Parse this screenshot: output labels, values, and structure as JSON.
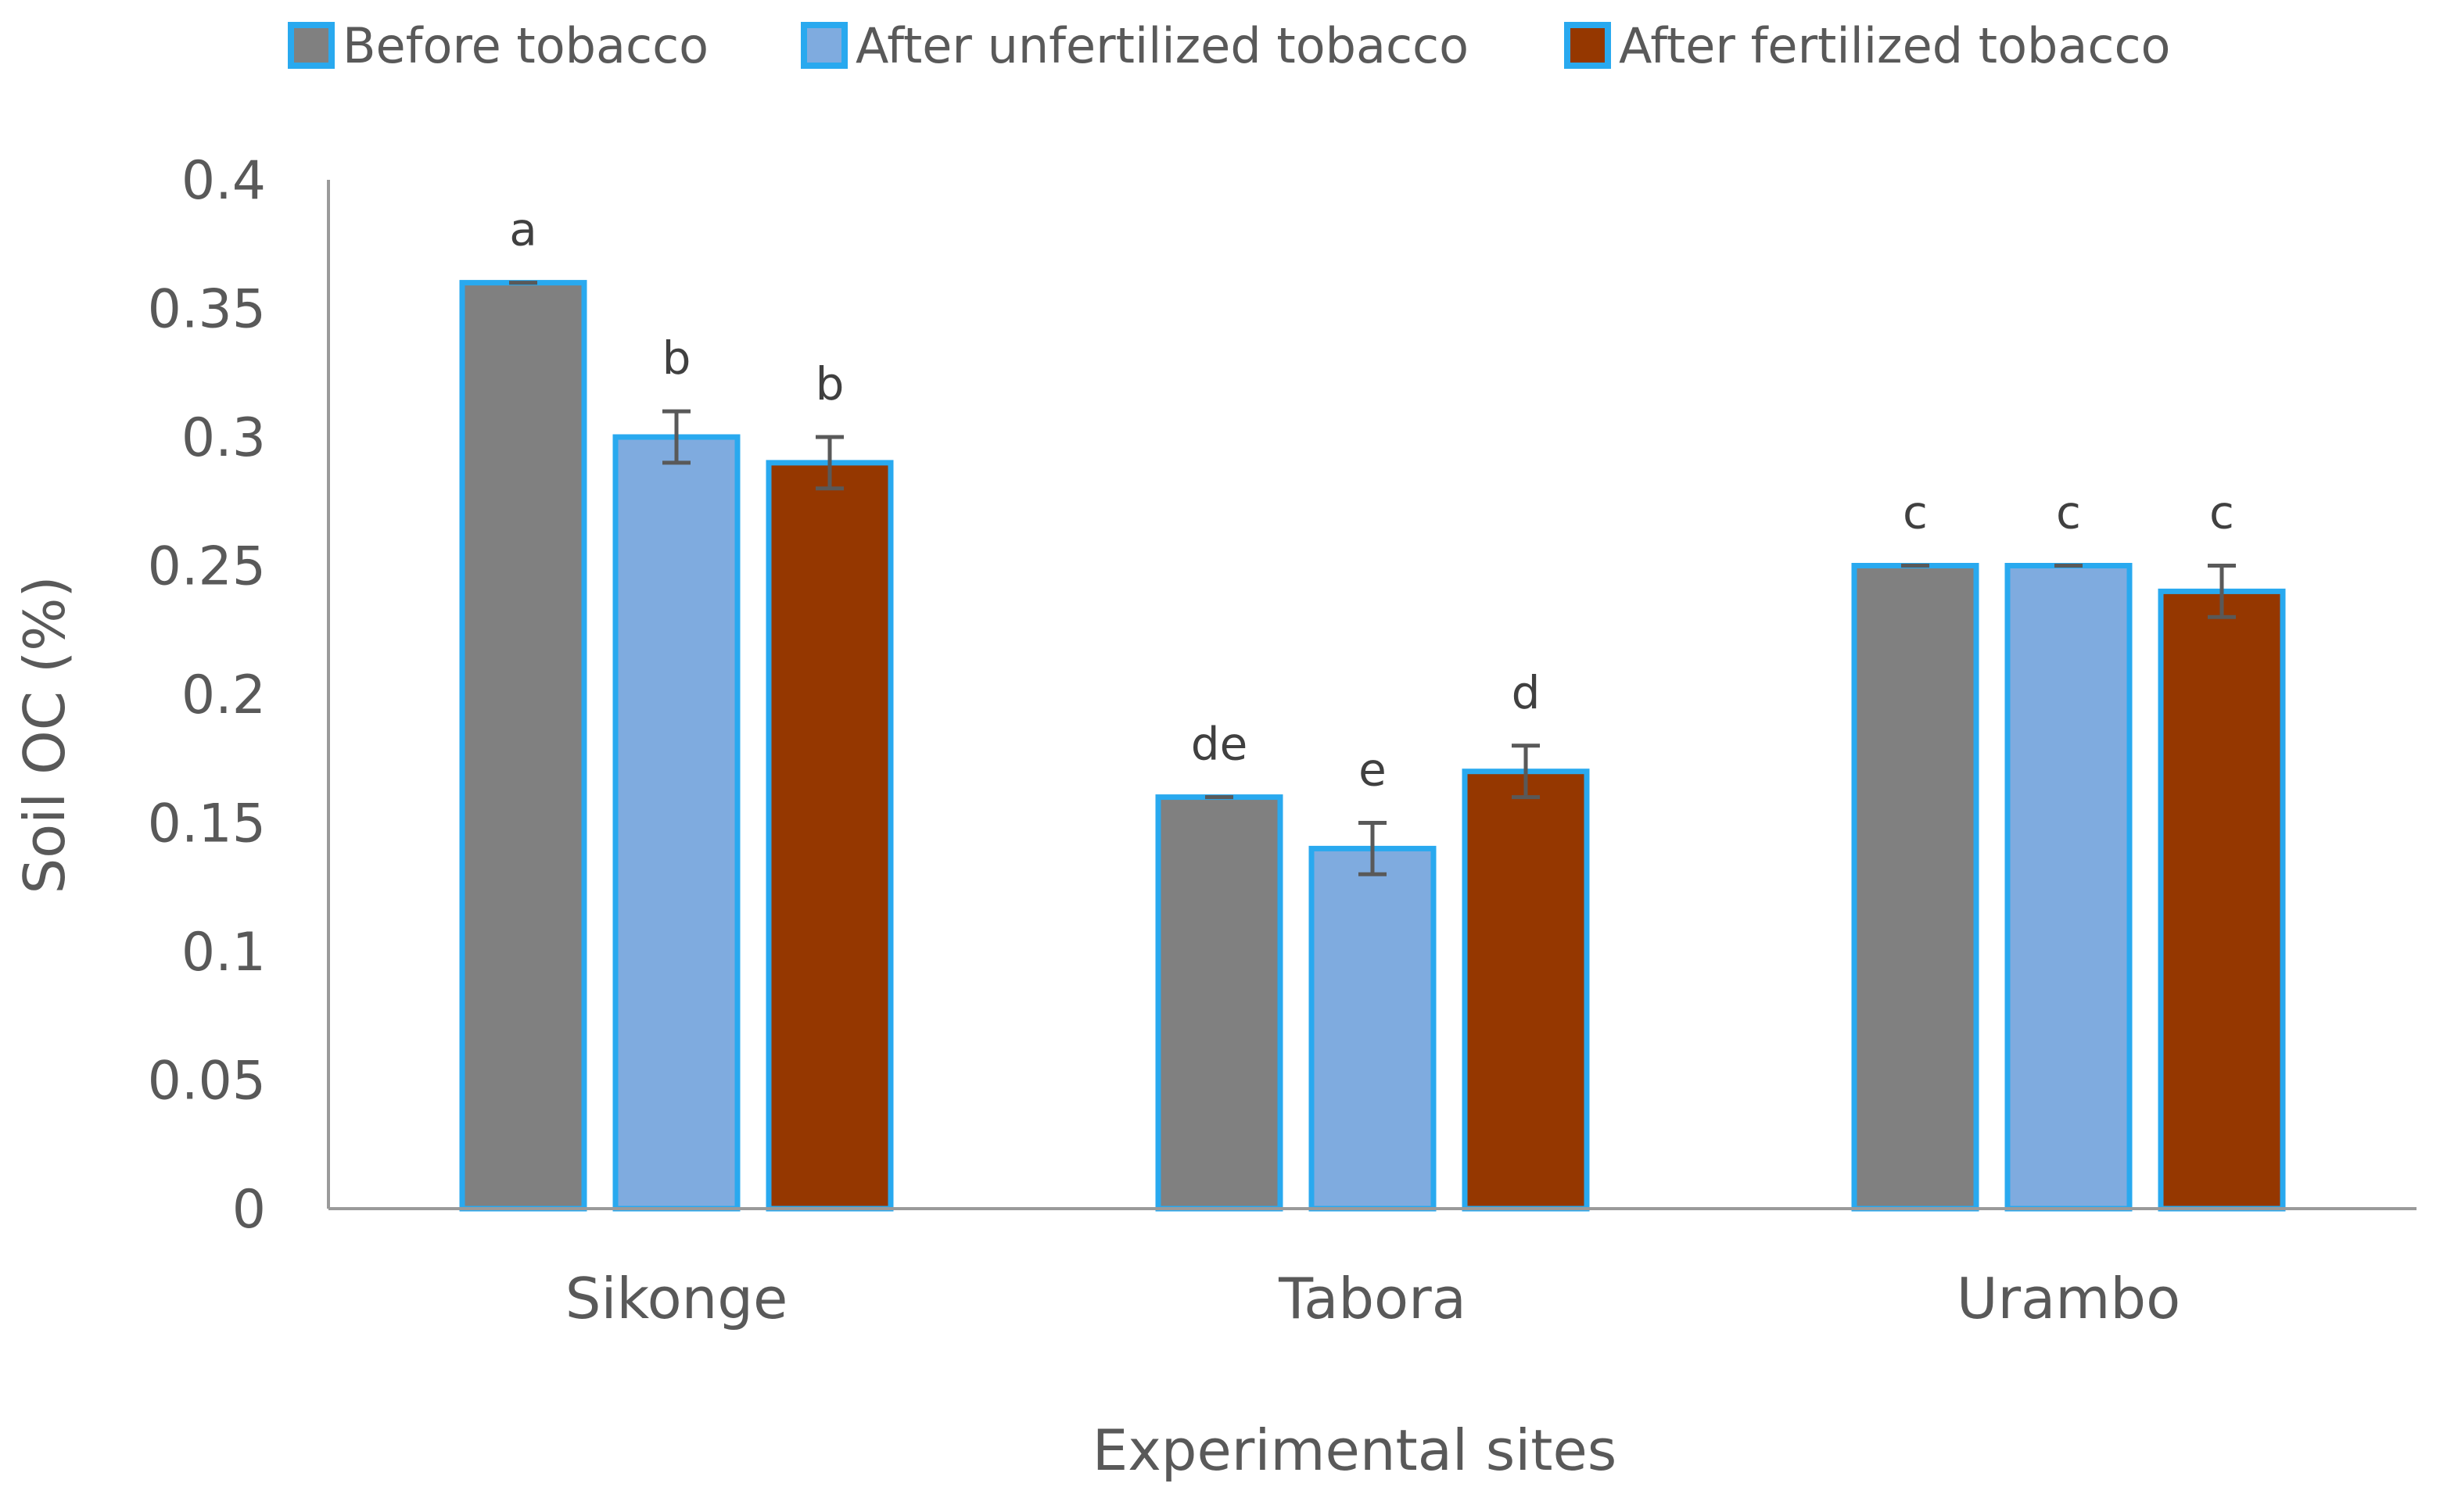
{
  "chart_data": {
    "type": "bar",
    "title": "",
    "xlabel": "Experimental sites",
    "ylabel": "Soil OC (%)",
    "ylim": [
      0,
      0.4
    ],
    "yticks": [
      0,
      0.05,
      0.1,
      0.15,
      0.2,
      0.25,
      0.3,
      0.35,
      0.4
    ],
    "ytick_labels": [
      "0",
      "0.05",
      "0.1",
      "0.15",
      "0.2",
      "0.25",
      "0.3",
      "0.35",
      "0.4"
    ],
    "categories": [
      "Sikonge",
      "Tabora",
      "Urambo"
    ],
    "grid": false,
    "legend_position": "top",
    "bar_edge_color": "#29A9EF",
    "series": [
      {
        "name": "Before tobacco",
        "color": "#808080",
        "values": [
          0.36,
          0.16,
          0.25
        ],
        "errors": [
          0.0,
          0.0,
          0.0
        ],
        "labels": [
          "a",
          "de",
          "c"
        ]
      },
      {
        "name": "After unfertilized tobacco",
        "color": "#7FABDF",
        "values": [
          0.3,
          0.14,
          0.25
        ],
        "errors": [
          0.01,
          0.01,
          0.0
        ],
        "labels": [
          "b",
          "e",
          "c"
        ]
      },
      {
        "name": "After fertilized tobacco",
        "color": "#953700",
        "values": [
          0.29,
          0.17,
          0.24
        ],
        "errors": [
          0.01,
          0.01,
          0.01
        ],
        "labels": [
          "b",
          "d",
          "c"
        ]
      }
    ]
  }
}
